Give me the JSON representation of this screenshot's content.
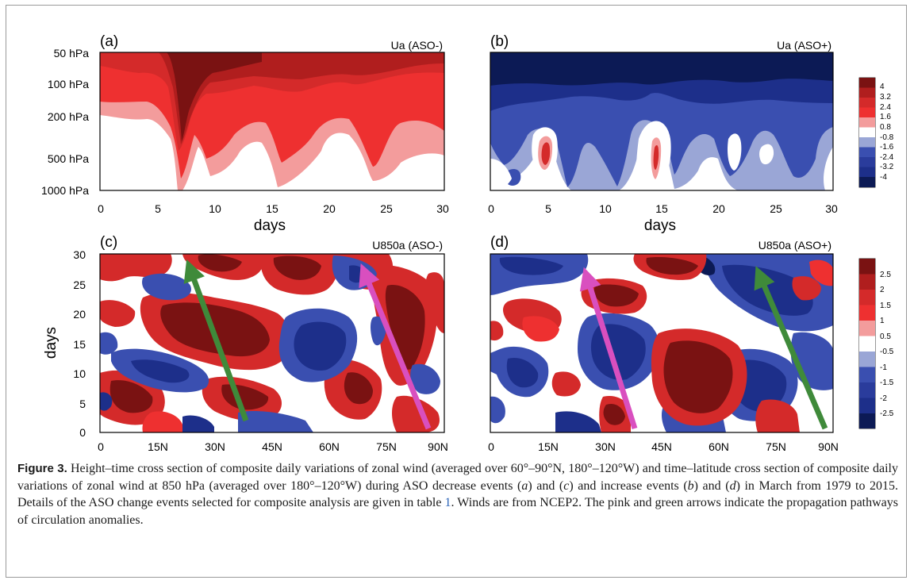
{
  "figure": {
    "colors": {
      "dark_red": "#7a1212",
      "red": "#d42a2a",
      "mid_red": "#ee3030",
      "light_red": "#f39c9c",
      "white": "#ffffff",
      "light_blue": "#9aa6d6",
      "mid_blue": "#3a4fb0",
      "blue": "#1d2f8a",
      "dark_blue": "#0c1a55",
      "pink_arrow": "#d94fbf",
      "green_arrow": "#3f8a3a"
    },
    "panels": [
      {
        "letter": "(a)",
        "title": "Ua (ASO-)",
        "y_ticks": [
          "50 hPa",
          "100 hPa",
          "200 hPa",
          "500 hPa",
          "1000 hPa"
        ],
        "x_ticks": [
          "0",
          "5",
          "10",
          "15",
          "20",
          "25",
          "30"
        ],
        "x_label": "days"
      },
      {
        "letter": "(b)",
        "title": "Ua (ASO+)",
        "x_ticks": [
          "0",
          "5",
          "10",
          "15",
          "20",
          "25",
          "30"
        ],
        "x_label": "days"
      },
      {
        "letter": "(c)",
        "title": "U850a (ASO-)",
        "y_ticks": [
          "30",
          "25",
          "20",
          "15",
          "10",
          "5",
          "0"
        ],
        "x_ticks": [
          "0",
          "15N",
          "30N",
          "45N",
          "60N",
          "75N",
          "90N"
        ],
        "y_label": "days"
      },
      {
        "letter": "(d)",
        "title": "U850a (ASO+)",
        "x_ticks": [
          "0",
          "15N",
          "30N",
          "45N",
          "60N",
          "75N",
          "90N"
        ]
      }
    ],
    "colorbar_top": [
      "4",
      "3.2",
      "2.4",
      "1.6",
      "0.8",
      "-0.8",
      "-1.6",
      "-2.4",
      "-3.2",
      "-4"
    ],
    "colorbar_bottom": [
      "2.5",
      "2",
      "1.5",
      "1",
      "0.5",
      "-0.5",
      "-1",
      "-1.5",
      "-2",
      "-2.5"
    ]
  },
  "caption": {
    "label": "Figure 3.",
    "text_1": " Height–time cross section of composite daily variations of zonal wind (averaged over 60°–90°N, 180°–120°W) and time–latitude cross section of composite daily variations of zonal wind at 850 hPa (averaged over 180°–120°W) during ASO decrease events (",
    "a": "a",
    "and_1": ") and (",
    "c": "c",
    "text_2": ") and increase events (",
    "b": "b",
    "and_2": ") and (",
    "d": "d",
    "text_3": ") in March from 1979 to 2015. Details of the ASO change events selected for composite analysis are given in table ",
    "table_ref": "1",
    "text_4": ". Winds are from NCEP2. The pink and green arrows indicate the propagation pathways of circulation anomalies."
  }
}
